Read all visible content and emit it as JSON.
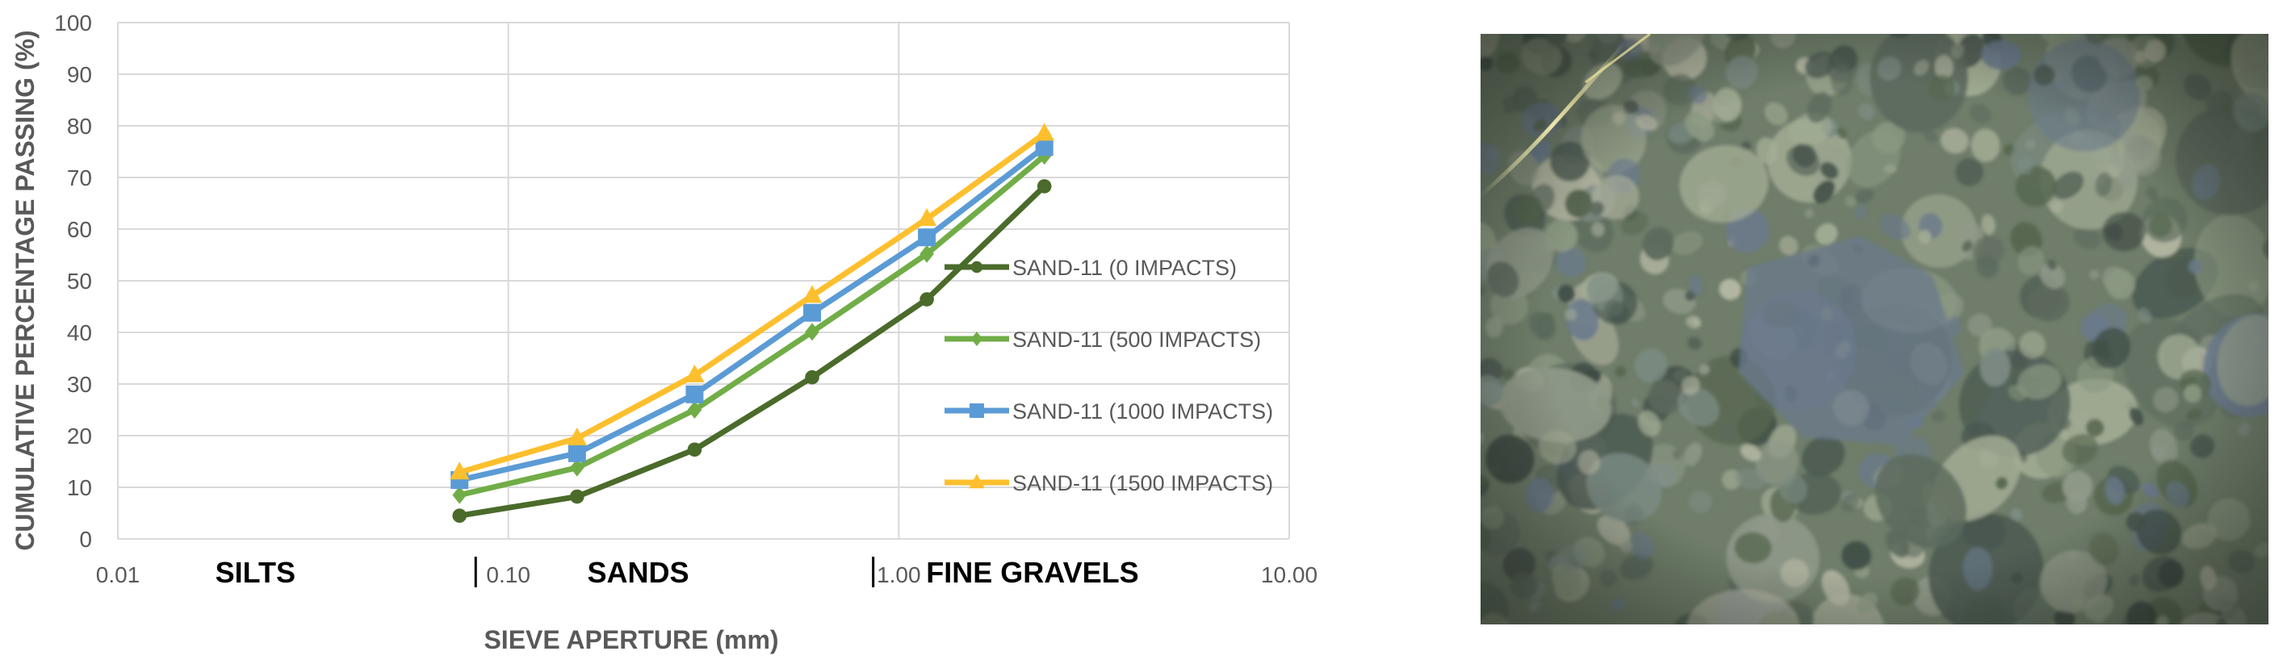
{
  "chart_data": {
    "type": "line",
    "x_scale": "log",
    "xlabel": "SIEVE APERTURE (mm)",
    "ylabel": "CUMULATIVE PERCENTAGE PASSING (%)",
    "xlim": [
      0.01,
      10
    ],
    "ylim": [
      0,
      100
    ],
    "x_ticks": [
      "0.01",
      "0.10",
      "1.00",
      "10.00"
    ],
    "y_ticks": [
      "0",
      "10",
      "20",
      "30",
      "40",
      "50",
      "60",
      "70",
      "80",
      "90",
      "100"
    ],
    "grid": true,
    "legend_position": "right",
    "zones": [
      {
        "label": "SILTS",
        "x_center": 0.0225
      },
      {
        "label": "SANDS",
        "x_center": 0.215
      },
      {
        "label": "FINE GRAVELS",
        "x_center": 2.2
      }
    ],
    "zone_dividers": [
      0.0825,
      0.86
    ],
    "x": [
      0.075,
      0.15,
      0.3,
      0.6,
      1.18,
      2.36
    ],
    "series": [
      {
        "name": "SAND-11 (0 IMPACTS)",
        "color": "#4a6b2a",
        "marker": "circle",
        "values": [
          4.5,
          8.2,
          17.3,
          31.3,
          46.4,
          68.3
        ]
      },
      {
        "name": "SAND-11 (500 IMPACTS)",
        "color": "#71ad47",
        "marker": "diamond",
        "values": [
          8.5,
          13.8,
          25.0,
          40.1,
          55.2,
          74.2
        ]
      },
      {
        "name": "SAND-11 (1000 IMPACTS)",
        "color": "#5b9bd5",
        "marker": "square",
        "values": [
          11.4,
          16.6,
          28.0,
          43.8,
          58.4,
          75.9
        ]
      },
      {
        "name": "SAND-11 (1500 IMPACTS)",
        "color": "#fdbf2d",
        "marker": "triangle",
        "values": [
          12.9,
          19.5,
          31.7,
          47.1,
          62.0,
          78.5
        ]
      }
    ]
  },
  "photo": {
    "base_color": "#6f7d6a",
    "tones": [
      "#8c9a83",
      "#5c6a5d",
      "#a3ad95",
      "#4a5850",
      "#7d8c84",
      "#6b7a8c",
      "#b5b8a4",
      "#56664f",
      "#909a8a",
      "#3f4c45"
    ]
  }
}
